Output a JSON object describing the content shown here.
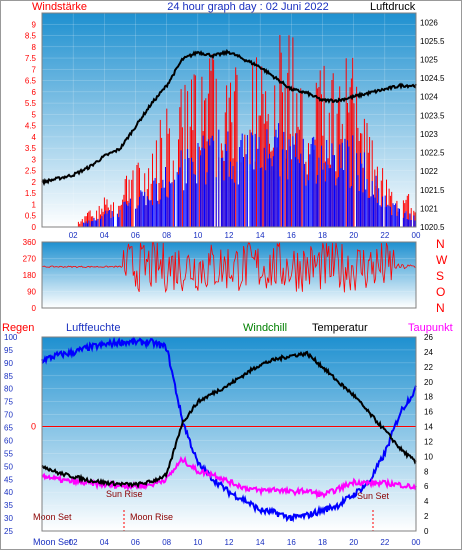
{
  "header": {
    "left_label": "Windstärke",
    "title": "24 hour graph day : 02 Juni 2022",
    "right_label": "Luftdruck"
  },
  "colors": {
    "wind": "#ff0000",
    "gust": "#0000ff",
    "pressure": "#000000",
    "humidity": "#0000ff",
    "windchill": "#008000",
    "temperature": "#000000",
    "dewpoint": "#ff00ff",
    "rain": "#ff0000",
    "direction": "#ff0000",
    "zero_line": "#ff0000",
    "sky_top": "#1e90d0",
    "sky_bottom": "#ffffff"
  },
  "chart_data": [
    {
      "type": "line",
      "name": "wind-pressure",
      "x_ticks": [
        "02",
        "04",
        "06",
        "08",
        "10",
        "12",
        "14",
        "16",
        "18",
        "20",
        "22",
        "00"
      ],
      "ylim_left": [
        0,
        9.5
      ],
      "y_ticks_left": [
        "0",
        "0.5",
        "1",
        "1.5",
        "2",
        "2.5",
        "3",
        "3.5",
        "4",
        "4.5",
        "5",
        "5.5",
        "6",
        "6.5",
        "7",
        "7.5",
        "8",
        "8.5",
        "9"
      ],
      "ylim_right": [
        1020.5,
        1026.25
      ],
      "y_ticks_right": [
        "1020.5",
        "1021",
        "1021.5",
        "1022",
        "1022.5",
        "1023",
        "1023.5",
        "1024",
        "1024.5",
        "1025",
        "1025.5",
        "1026"
      ],
      "series": [
        {
          "name": "Luftdruck",
          "hours": [
            0,
            1,
            2,
            3,
            4,
            5,
            6,
            7,
            8,
            9,
            10,
            11,
            12,
            13,
            14,
            15,
            16,
            17,
            18,
            19,
            20,
            21,
            22,
            23,
            24
          ],
          "values": [
            1021.7,
            1021.8,
            1021.9,
            1022.1,
            1022.4,
            1022.6,
            1023.2,
            1023.8,
            1024.3,
            1025.0,
            1025.2,
            1025.1,
            1025.2,
            1025.0,
            1024.8,
            1024.5,
            1024.2,
            1024.1,
            1023.9,
            1023.9,
            1024.0,
            1024.1,
            1024.2,
            1024.3,
            1024.3
          ]
        },
        {
          "name": "Windstärke",
          "values": [
            0,
            0,
            0,
            0.3,
            0.6,
            0.9,
            1.2,
            1.7,
            2.3,
            2.9,
            3.3,
            3.8,
            3.6,
            3.8,
            3.9,
            3.9,
            4.0,
            3.5,
            3.2,
            3.3,
            3.5,
            2.5,
            1.2,
            0.8,
            0.5
          ]
        },
        {
          "name": "Böen",
          "values": [
            0,
            0,
            0,
            0.6,
            1.2,
            1.6,
            2.4,
            3.4,
            4.6,
            5.6,
            6.2,
            6.8,
            6.5,
            6.8,
            7.0,
            7.1,
            7.2,
            6.5,
            6.0,
            6.2,
            6.6,
            4.5,
            2.2,
            1.5,
            1.0
          ]
        }
      ]
    },
    {
      "type": "line",
      "name": "wind-direction",
      "y_ticks": [
        "0",
        "90",
        "180",
        "270",
        "360"
      ],
      "compass_labels": [
        "N",
        "W",
        "S",
        "O",
        "N"
      ],
      "ylim": [
        0,
        360
      ],
      "mean_direction": 225
    },
    {
      "type": "line",
      "name": "temp-humidity",
      "legend": [
        "Regen",
        "Luftfeuchte",
        "Windchill",
        "Temperatur",
        "Taupunkt"
      ],
      "ylim_left": [
        25,
        100
      ],
      "y_ticks_left": [
        "25",
        "30",
        "35",
        "40",
        "45",
        "50",
        "55",
        "60",
        "65",
        "70",
        "75",
        "80",
        "85",
        "90",
        "95",
        "100"
      ],
      "ylim_right": [
        0,
        26
      ],
      "y_ticks_right": [
        "0",
        "2",
        "4",
        "6",
        "8",
        "10",
        "12",
        "14",
        "16",
        "18",
        "20",
        "22",
        "24",
        "26"
      ],
      "zero_label": "0",
      "x_ticks": [
        "02",
        "04",
        "06",
        "08",
        "10",
        "12",
        "14",
        "16",
        "18",
        "20",
        "22",
        "00"
      ],
      "annotations": [
        "Moon Set",
        "Moon Rise",
        "Sun Rise",
        "Sun Set",
        "Moon Set"
      ],
      "hours": [
        0,
        1,
        2,
        3,
        4,
        5,
        6,
        7,
        8,
        9,
        10,
        11,
        12,
        13,
        14,
        15,
        16,
        17,
        18,
        19,
        20,
        21,
        22,
        23,
        24
      ],
      "series": [
        {
          "name": "Luftfeuchte",
          "values": [
            91,
            93,
            94,
            96,
            97,
            98,
            98,
            98,
            96,
            68,
            51,
            45,
            40,
            37,
            33,
            32,
            30,
            31,
            33,
            35,
            39,
            44,
            55,
            71,
            80
          ]
        },
        {
          "name": "Temperatur",
          "values": [
            8.8,
            7.8,
            7.3,
            6.8,
            6.5,
            6.3,
            6.2,
            6.6,
            7.5,
            14.5,
            17.3,
            18.5,
            19.6,
            21.0,
            22.3,
            23.0,
            23.5,
            23.8,
            22.0,
            20.0,
            18.2,
            15.8,
            13.5,
            11.0,
            9.2
          ]
        },
        {
          "name": "Taupunkt",
          "values": [
            7.5,
            6.9,
            6.6,
            6.4,
            6.2,
            6.1,
            6.0,
            6.2,
            7.0,
            9.6,
            8.0,
            7.6,
            6.6,
            5.8,
            5.4,
            5.6,
            5.2,
            5.4,
            4.8,
            5.6,
            6.6,
            6.4,
            6.4,
            6.2,
            5.8
          ]
        }
      ]
    }
  ]
}
